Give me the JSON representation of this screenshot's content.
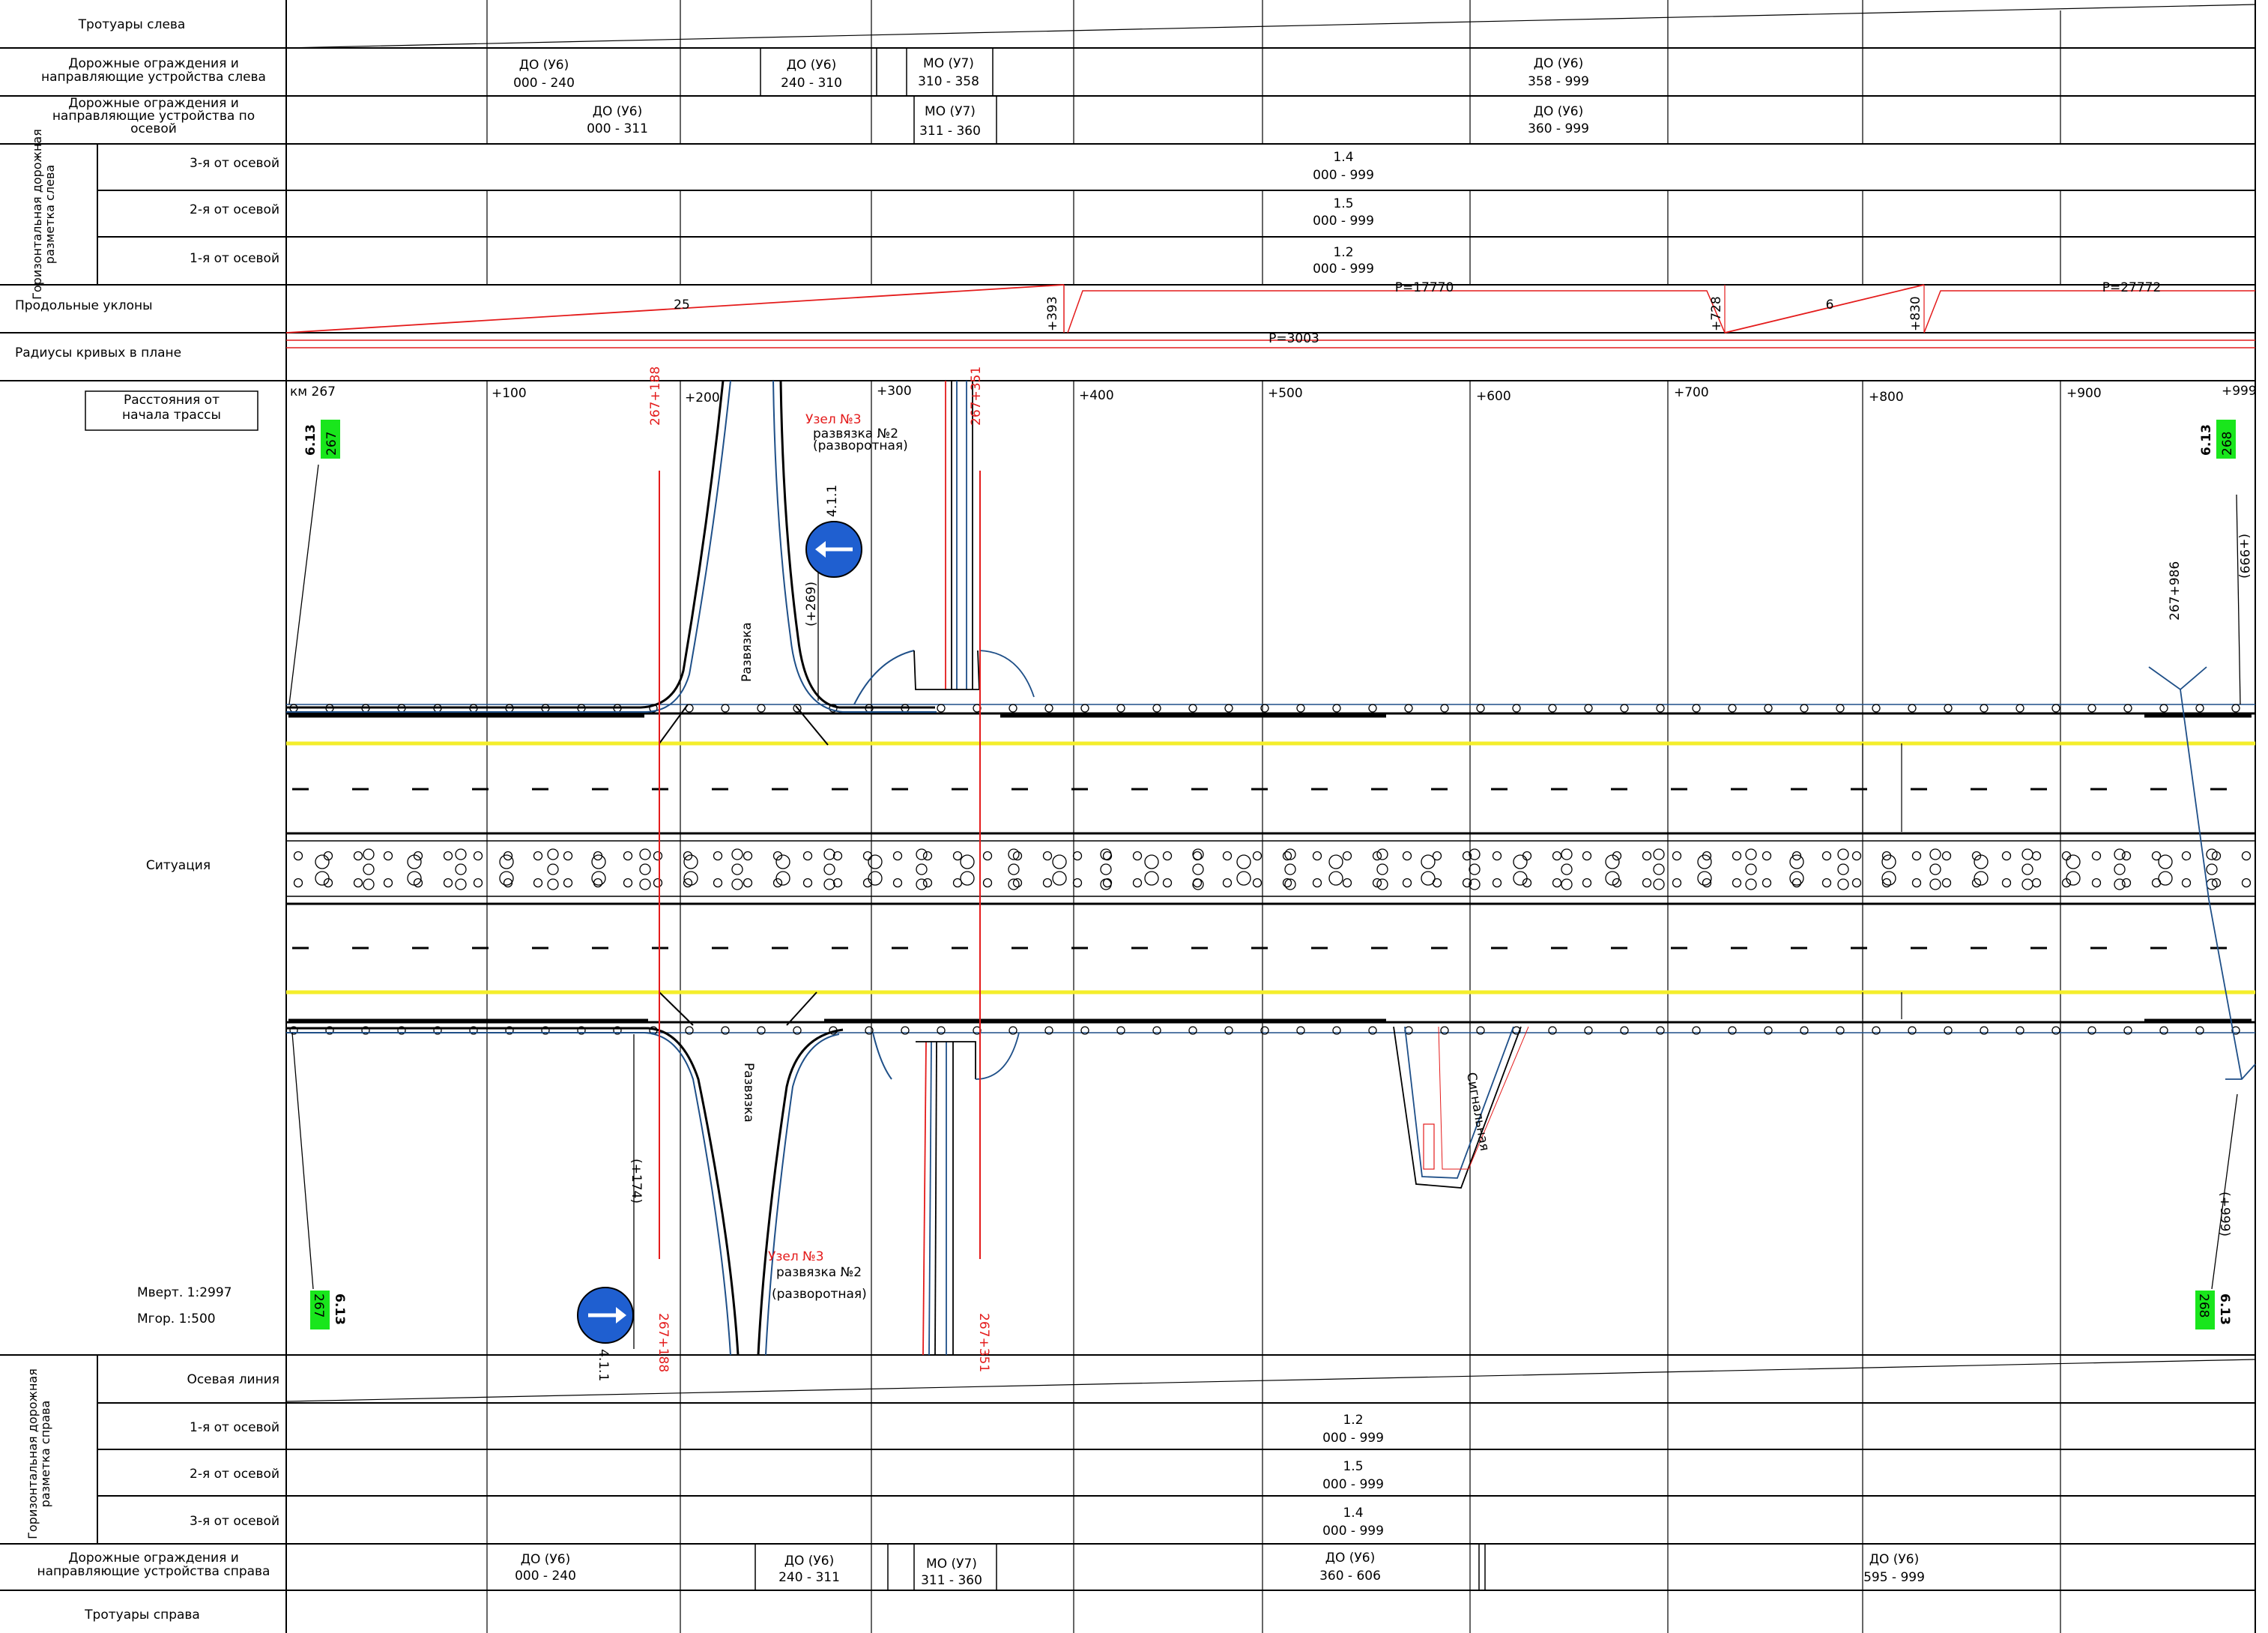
{
  "colors": {
    "ink": "#000000",
    "red": "#e41b1b",
    "blue": "#1e4f88",
    "yellow": "#f4ee2b",
    "green": "#19e61c",
    "sign_blue": "#1f5fd0"
  },
  "rows": {
    "sidewalks_left": "Тротуары слева",
    "barriers_left": "Дорожные ограждения и направляющие устройства слева",
    "barriers_axial": "Дорожные ограждения и направляющие устройства по осевой",
    "marking_left_group": "Горизонтальная дорожная разметка слева",
    "lane3": "3-я от осевой",
    "lane2": "2-я от осевой",
    "lane1": "1-я от осевой",
    "profile": "Продольные уклоны",
    "radii": "Радиусы кривых в плане",
    "distances": "Расстояния от начала трассы",
    "situation": "Ситуация",
    "axis_line": "Осевая линия",
    "marking_right_group": "Горизонтальная дорожная разметка справа",
    "barriers_right": "Дорожные ограждения и направляющие устройства справа",
    "sidewalks_right": "Тротуары справа"
  },
  "barriers_left": [
    {
      "code": "ДО (У6)",
      "range": "000 - 240"
    },
    {
      "code": "ДО (У6)",
      "range": "240 - 310"
    },
    {
      "code": "МО (У7)",
      "range": "310 - 358"
    },
    {
      "code": "ДО (У6)",
      "range": "358 - 999"
    }
  ],
  "barriers_axial": [
    {
      "code": "ДО (У6)",
      "range": "000 - 311"
    },
    {
      "code": "МО (У7)",
      "range": "311 - 360"
    },
    {
      "code": "ДО (У6)",
      "range": "360 - 999"
    }
  ],
  "marking_left": [
    {
      "code": "1.4",
      "range": "000 - 999"
    },
    {
      "code": "1.5",
      "range": "000 - 999"
    },
    {
      "code": "1.2",
      "range": "000 - 999"
    }
  ],
  "marking_right": [
    {
      "code": "1.2",
      "range": "000 - 999"
    },
    {
      "code": "1.5",
      "range": "000 - 999"
    },
    {
      "code": "1.4",
      "range": "000 - 999"
    }
  ],
  "barriers_right": [
    {
      "code": "ДО (У6)",
      "range": "000 - 240"
    },
    {
      "code": "ДО (У6)",
      "range": "240 - 311"
    },
    {
      "code": "МО (У7)",
      "range": "311 - 360"
    },
    {
      "code": "ДО (У6)",
      "range": "360 - 606"
    },
    {
      "code": "ДО (У6)",
      "range": "595 - 999"
    }
  ],
  "profile": {
    "grade1": "25",
    "grade2": "6",
    "pk1": "+393",
    "pk2": "+728",
    "pk3": "+830",
    "r1": "Р=17770",
    "r2": "Р=27772"
  },
  "radius_plan": "Р=3003",
  "stations": {
    "km": "км 267",
    "labels": [
      "+100",
      "+200",
      "+300",
      "+400",
      "+500",
      "+600",
      "+700",
      "+800",
      "+900",
      "+999"
    ]
  },
  "situation": {
    "node": "Узел №3",
    "interchange": "развязка №2",
    "uturn": "(разворотная)",
    "ramp": "Развязка",
    "sign": "4.1.1",
    "pk_a": "267+188",
    "pk_b": "267+351",
    "pk_269": "(+269)",
    "pk_174": "(+174)",
    "pk_999": "(+999)",
    "pk_986": "267+986",
    "signal": "Сигнальная",
    "km_sign": "6.13",
    "km267": "267",
    "km268": "268",
    "scale_v": "Мверт. 1:2997",
    "scale_h": "Мгор.   1:500"
  }
}
